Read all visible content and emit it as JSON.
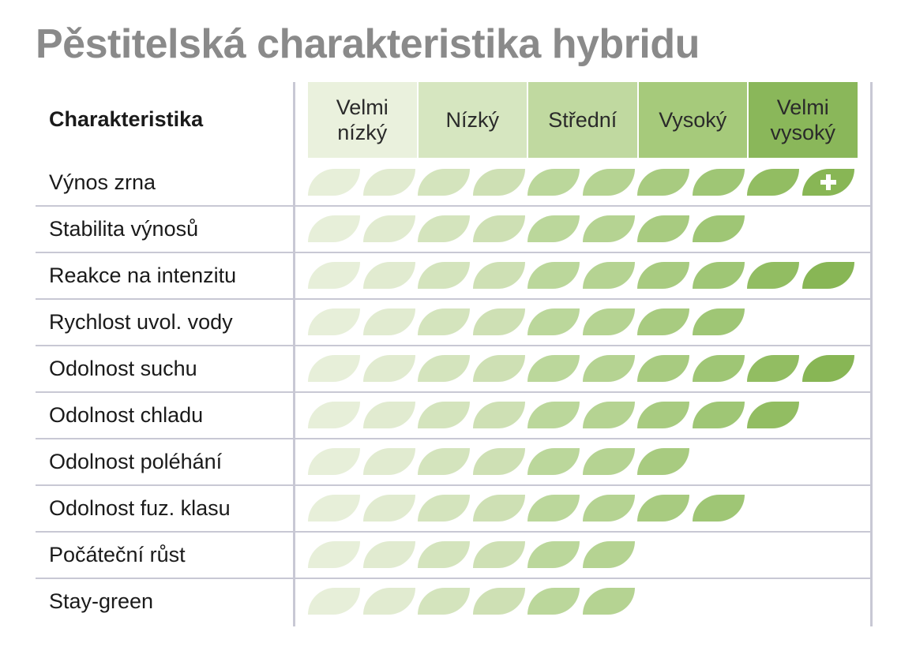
{
  "title": "Pěstitelská charakteristika hybridu",
  "chart_data": {
    "type": "table",
    "header_label": "Charakteristika",
    "levels": [
      "Velmi nízký",
      "Nízký",
      "Střední",
      "Vysoký",
      "Velmi vysoký"
    ],
    "max_score": 10,
    "rows": [
      {
        "label": "Výnos zrna",
        "score": 10,
        "plus": true
      },
      {
        "label": "Stabilita výnosů",
        "score": 8
      },
      {
        "label": "Reakce na intenzitu",
        "score": 10
      },
      {
        "label": "Rychlost uvol. vody",
        "score": 8
      },
      {
        "label": "Odolnost suchu",
        "score": 10
      },
      {
        "label": "Odolnost chladu",
        "score": 9
      },
      {
        "label": "Odolnost poléhání",
        "score": 7
      },
      {
        "label": "Odolnost fuz. klasu",
        "score": 8
      },
      {
        "label": "Počáteční růst",
        "score": 6
      },
      {
        "label": "Stay-green",
        "score": 6
      }
    ]
  },
  "colors": {
    "level_backgrounds": [
      "#eaf1dd",
      "#d6e6c0",
      "#c0d9a0",
      "#a6ca7b",
      "#8ab75a"
    ],
    "leaf_colors": [
      "#e7efd9",
      "#e1ebd0",
      "#d4e4bd",
      "#cee0b4",
      "#bbd79b",
      "#b5d392",
      "#a8cb80",
      "#9fc675",
      "#92bd62",
      "#88b655"
    ]
  }
}
